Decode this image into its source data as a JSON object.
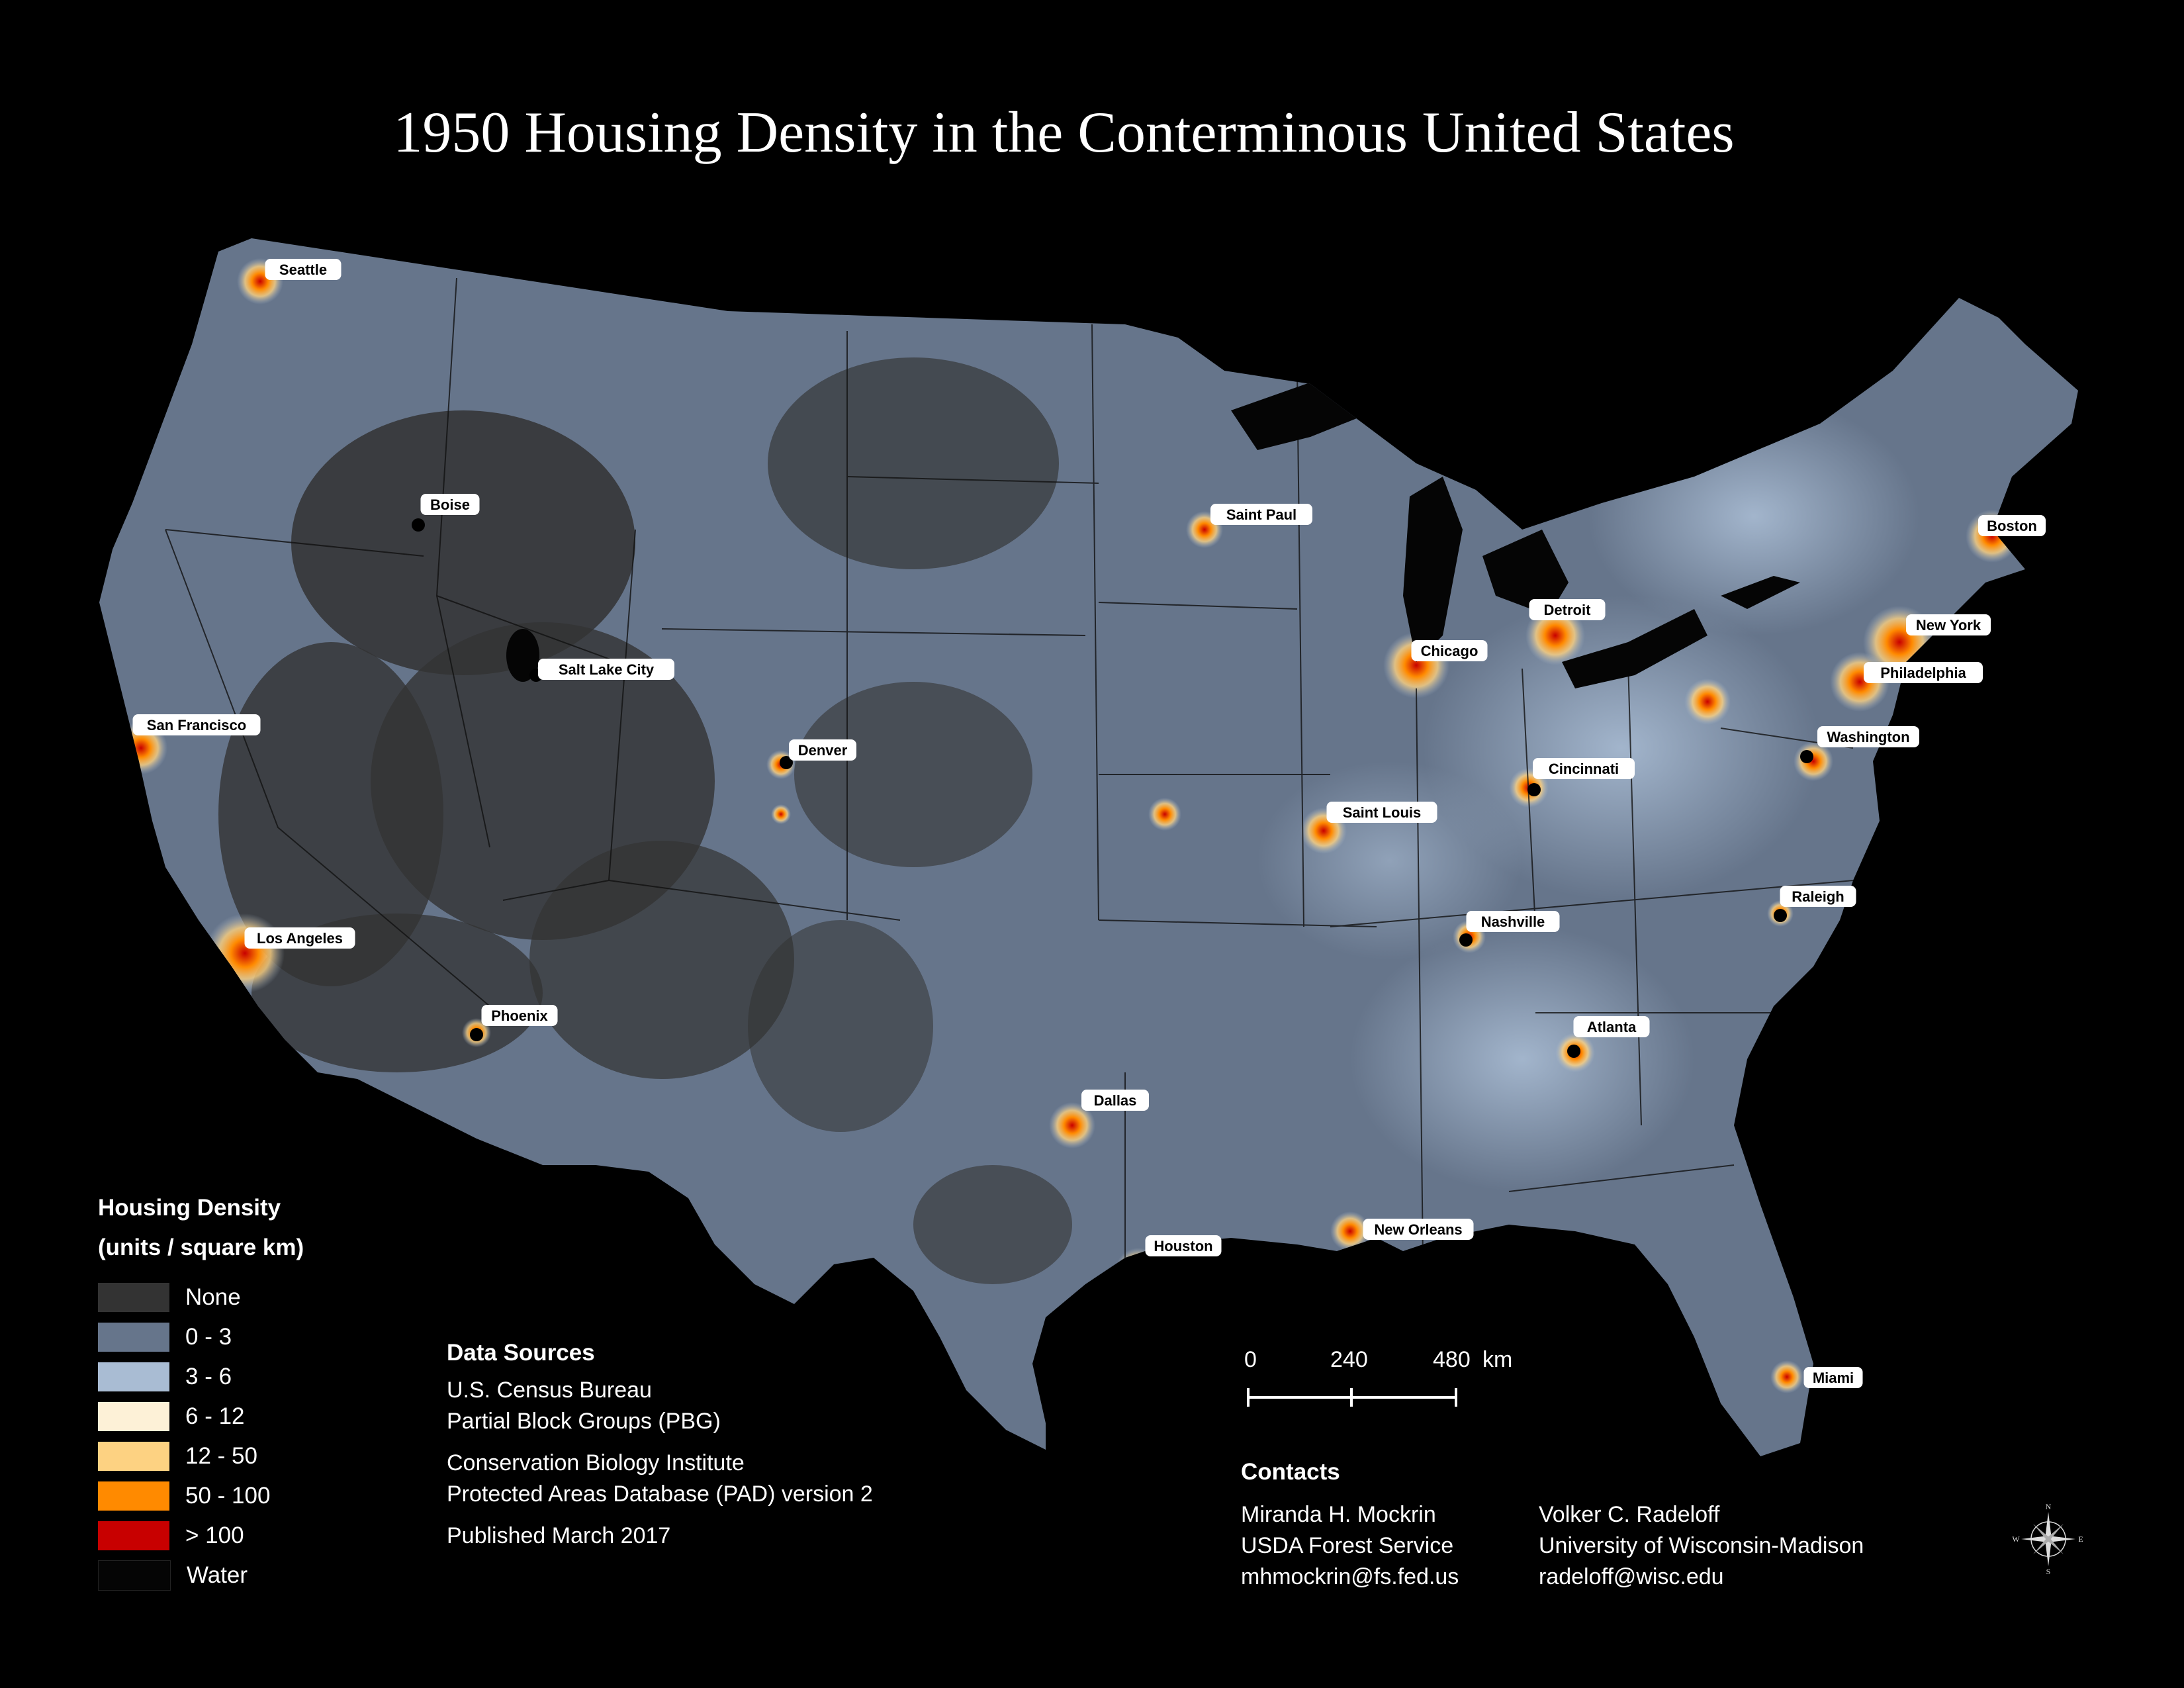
{
  "title": "1950 Housing Density in the Conterminous United States",
  "colors": {
    "none": "#333333",
    "d0_3": "#66758b",
    "d3_6": "#a9bcd3",
    "d6_12": "#fdf1d7",
    "d12_50": "#fdd282",
    "d50_100": "#ff8a00",
    "gt100": "#c80000",
    "water": "#050505"
  },
  "legend": {
    "title": "Housing Density",
    "subtitle": "(units / square km)",
    "items": [
      {
        "label": "None",
        "color": "#333333"
      },
      {
        "label": "0 - 3",
        "color": "#66758b"
      },
      {
        "label": "3 - 6",
        "color": "#a9bcd3"
      },
      {
        "label": "6 - 12",
        "color": "#fdf1d7"
      },
      {
        "label": "12 - 50",
        "color": "#fdd282"
      },
      {
        "label": "50 - 100",
        "color": "#ff8a00"
      },
      {
        "label": "> 100",
        "color": "#c80000"
      },
      {
        "label": "Water",
        "color": "#050505"
      }
    ]
  },
  "cities": [
    "Seattle",
    "Boise",
    "Salt Lake City",
    "San Francisco",
    "Los Angeles",
    "Phoenix",
    "Denver",
    "Saint Paul",
    "Chicago",
    "Detroit",
    "Saint Louis",
    "Cincinnati",
    "Nashville",
    "Dallas",
    "Houston",
    "New Orleans",
    "Atlanta",
    "Raleigh",
    "Washington",
    "Philadelphia",
    "New York",
    "Boston",
    "Miami"
  ],
  "data_sources": {
    "heading": "Data Sources",
    "lines": [
      "U.S. Census Bureau",
      "Partial Block Groups (PBG)",
      "",
      "Conservation Biology Institute",
      "Protected Areas Database (PAD) version 2",
      "",
      "Published March 2017"
    ]
  },
  "scale": {
    "ticks": [
      "0",
      "240",
      "480"
    ],
    "unit": "km"
  },
  "contacts": {
    "heading": "Contacts",
    "people": [
      {
        "name": "Miranda H. Mockrin",
        "org": "USDA Forest Service",
        "email": "mhmockrin@fs.fed.us"
      },
      {
        "name": "Volker C. Radeloff",
        "org": "University of Wisconsin-Madison",
        "email": "radeloff@wisc.edu"
      }
    ]
  },
  "compass": {
    "n": "N",
    "s": "S",
    "e": "E",
    "w": "W"
  }
}
